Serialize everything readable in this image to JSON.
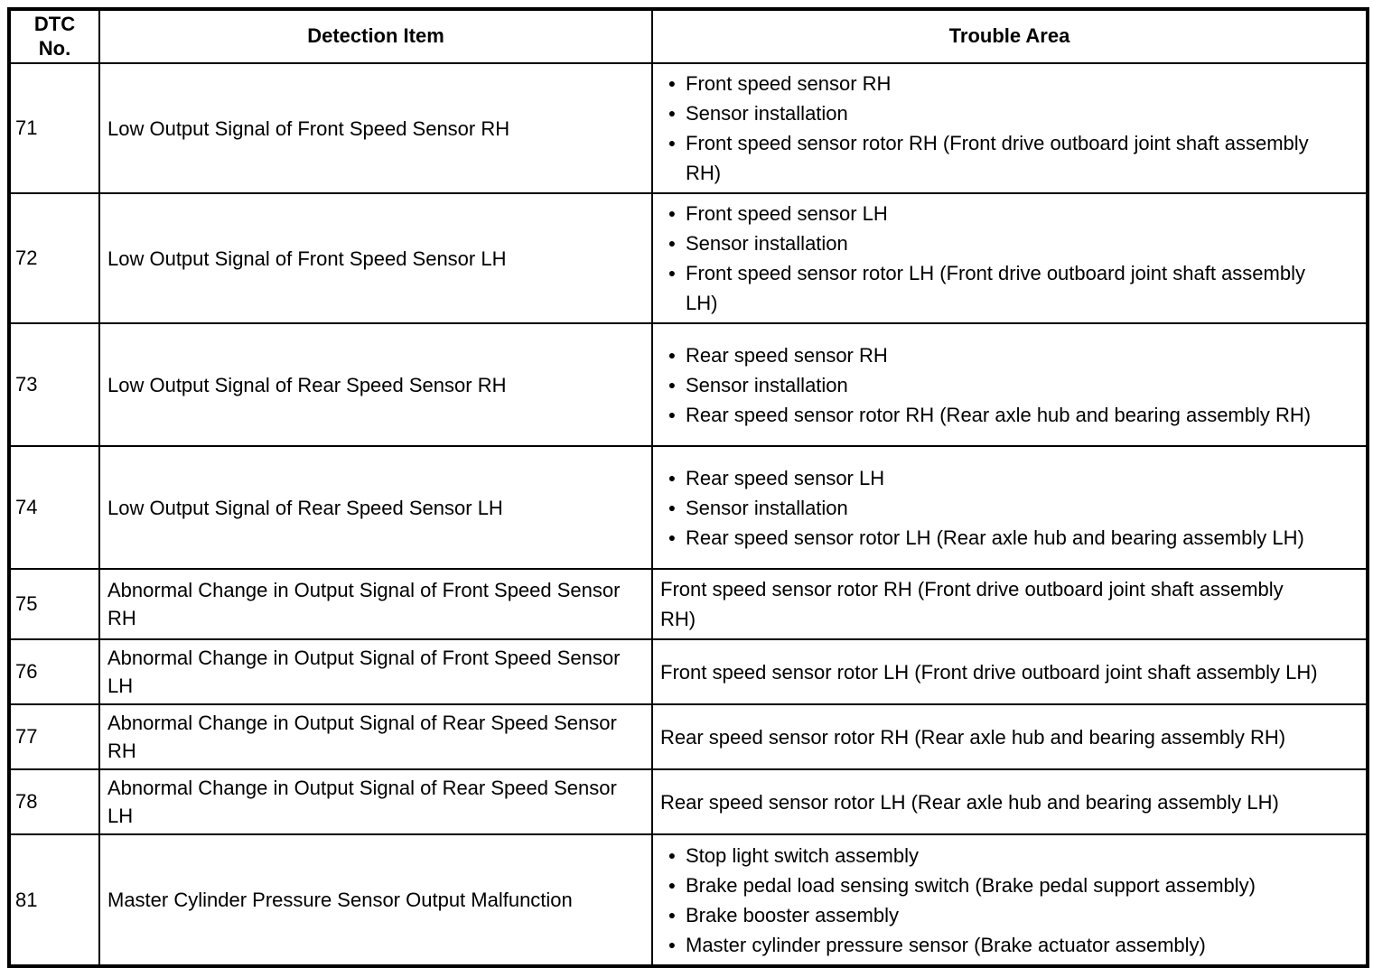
{
  "table": {
    "headers": {
      "dtc": "DTC\nNo.",
      "detection": "Detection Item",
      "trouble": "Trouble Area"
    },
    "bullet_icon": "●",
    "rows": [
      {
        "dtc": "71",
        "detection": "Low Output Signal of Front Speed Sensor RH",
        "trouble": {
          "bullets": [
            "Front speed sensor RH",
            "Sensor installation",
            "Front speed sensor rotor RH (Front drive outboard joint shaft assembly RH)"
          ]
        }
      },
      {
        "dtc": "72",
        "detection": "Low Output Signal of Front Speed Sensor LH",
        "trouble": {
          "bullets": [
            "Front speed sensor LH",
            "Sensor installation",
            "Front speed sensor rotor LH (Front drive outboard joint shaft assembly LH)"
          ]
        }
      },
      {
        "dtc": "73",
        "detection": "Low Output Signal of Rear Speed Sensor RH",
        "trouble": {
          "bullets": [
            "Rear speed sensor RH",
            "Sensor installation",
            "Rear speed sensor rotor RH (Rear axle hub and bearing assembly RH)"
          ]
        }
      },
      {
        "dtc": "74",
        "detection": "Low Output Signal of Rear Speed Sensor LH",
        "trouble": {
          "bullets": [
            "Rear speed sensor LH",
            "Sensor installation",
            "Rear speed sensor rotor LH (Rear axle hub and bearing assembly LH)"
          ]
        }
      },
      {
        "dtc": "75",
        "detection": "Abnormal Change in Output Signal of Front Speed Sensor RH",
        "trouble": {
          "text": "Front speed sensor rotor RH (Front drive outboard joint shaft assembly RH)"
        }
      },
      {
        "dtc": "76",
        "detection": "Abnormal Change in Output Signal of Front Speed Sensor LH",
        "trouble": {
          "text": "Front speed sensor rotor LH (Front drive outboard joint shaft assembly LH)"
        }
      },
      {
        "dtc": "77",
        "detection": "Abnormal Change in Output Signal of Rear Speed Sensor RH",
        "trouble": {
          "text": "Rear speed sensor rotor RH (Rear axle hub and bearing assembly RH)"
        }
      },
      {
        "dtc": "78",
        "detection": "Abnormal Change in Output Signal of Rear Speed Sensor LH",
        "trouble": {
          "text": "Rear speed sensor rotor LH (Rear axle hub and bearing assembly LH)"
        }
      },
      {
        "dtc": "81",
        "detection": "Master Cylinder Pressure Sensor Output Malfunction",
        "trouble": {
          "bullets": [
            "Stop light switch assembly",
            "Brake pedal load sensing switch (Brake pedal support assembly)",
            "Brake booster assembly",
            "Master cylinder pressure sensor (Brake actuator assembly)"
          ]
        }
      }
    ]
  }
}
